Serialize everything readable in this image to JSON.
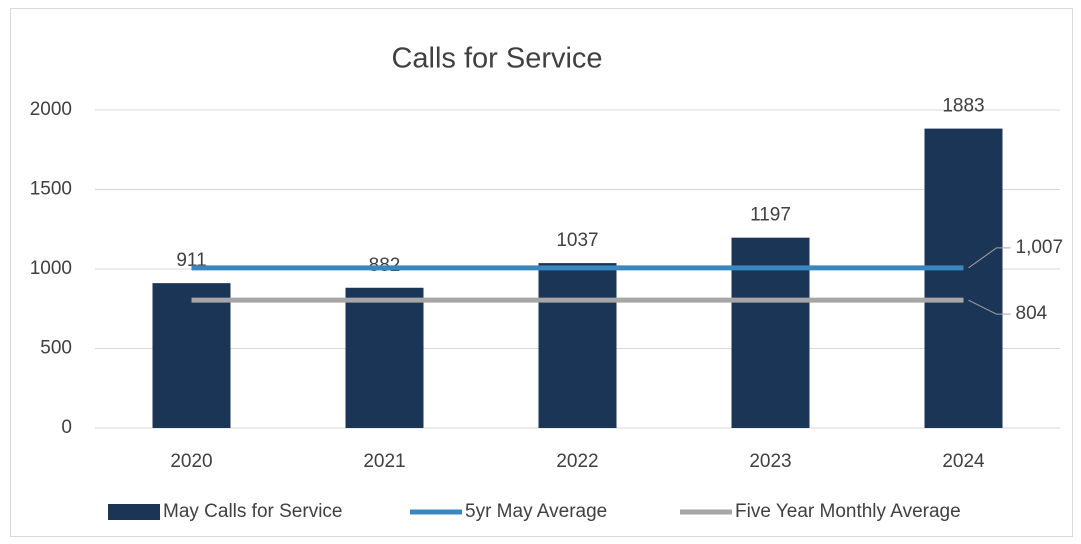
{
  "chart_data": {
    "type": "bar",
    "title": "Calls for Service",
    "categories": [
      "2020",
      "2021",
      "2022",
      "2023",
      "2024"
    ],
    "series": [
      {
        "name": "May Calls for Service",
        "type": "bar",
        "color": "#1b3556",
        "values": [
          911,
          882,
          1037,
          1197,
          1883
        ]
      },
      {
        "name": "5yr May Average",
        "type": "line",
        "color": "#3a87bf",
        "values": [
          1007,
          1007,
          1007,
          1007,
          1007
        ],
        "value_labels": [
          null,
          null,
          null,
          null,
          "1,007"
        ]
      },
      {
        "name": "Five Year Monthly Average",
        "type": "line",
        "color": "#a6a6a6",
        "values": [
          804,
          804,
          804,
          804,
          804
        ],
        "value_labels": [
          null,
          null,
          null,
          null,
          "804"
        ]
      }
    ],
    "ylim": [
      0,
      2000
    ],
    "yticks": [
      0,
      500,
      1000,
      1500,
      2000
    ],
    "grid": true,
    "legend": "bottom"
  }
}
